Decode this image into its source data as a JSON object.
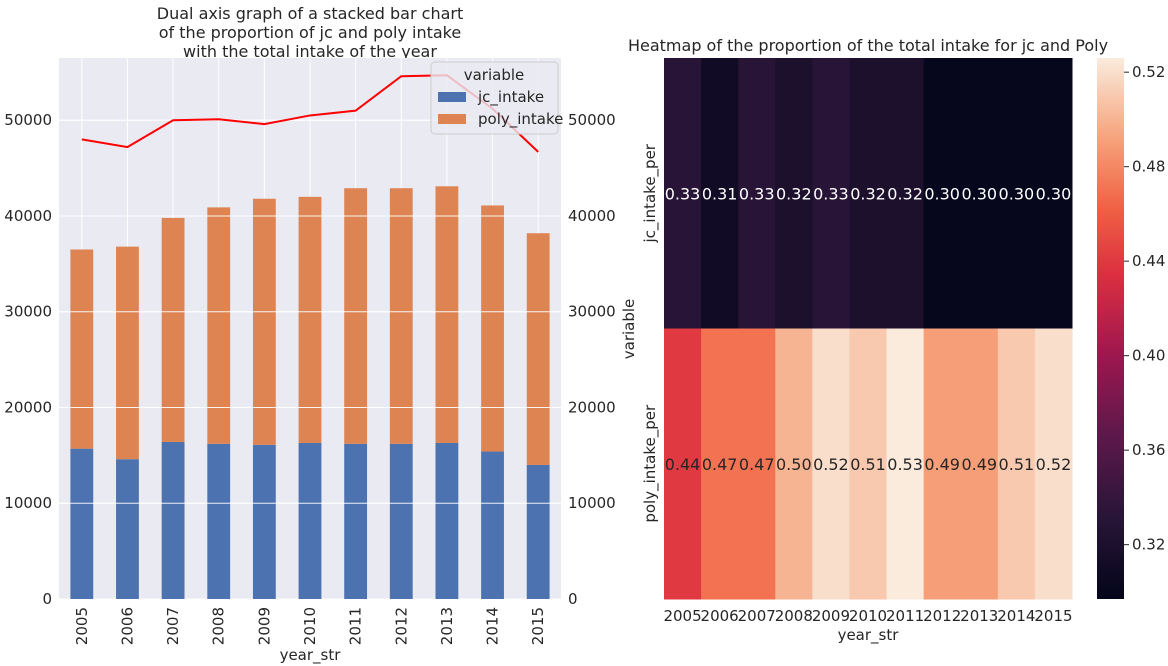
{
  "chart_data": [
    {
      "type": "bar",
      "stacked": true,
      "dual_axis": true,
      "title": "Dual axis graph of a stacked bar chart\nof the proportion of jc and poly intake\nwith the total intake of the year",
      "xlabel": "year_str",
      "ylabel": "",
      "ylim": [
        0,
        56500
      ],
      "y_ticks": [
        "0",
        "10000",
        "20000",
        "30000",
        "40000",
        "50000"
      ],
      "categories": [
        "2005",
        "2006",
        "2007",
        "2008",
        "2009",
        "2010",
        "2011",
        "2012",
        "2013",
        "2014",
        "2015"
      ],
      "legend": {
        "title": "variable",
        "placement": "upper right"
      },
      "grid": true,
      "series": [
        {
          "name": "jc_intake",
          "color": "#4c72b0",
          "values": [
            15700,
            14600,
            16400,
            16200,
            16100,
            16300,
            16200,
            16200,
            16300,
            15400,
            14000
          ]
        },
        {
          "name": "poly_intake",
          "color": "#dd8452",
          "values": [
            20800,
            22200,
            23400,
            24700,
            25700,
            25700,
            26700,
            26700,
            26800,
            25700,
            24200
          ]
        }
      ],
      "secondary_axis": {
        "type": "line",
        "color": "#ff0000",
        "ylim": [
          0,
          56500
        ],
        "y_ticks": [
          "0",
          "10000",
          "20000",
          "30000",
          "40000",
          "50000"
        ],
        "values": [
          48000,
          47200,
          50000,
          50100,
          49600,
          50500,
          51000,
          54600,
          54700,
          51200,
          46700
        ]
      }
    },
    {
      "type": "heatmap",
      "title": "Heatmap of the proportion of the total intake for jc and Poly",
      "xlabel": "year_str",
      "ylabel": "variable",
      "x_categories": [
        "2005",
        "2006",
        "2007",
        "2008",
        "2009",
        "2010",
        "2011",
        "2012",
        "2013",
        "2014",
        "2015"
      ],
      "y_categories": [
        "jc_intake_per",
        "poly_intake_per"
      ],
      "values": [
        [
          0.33,
          0.31,
          0.33,
          0.32,
          0.33,
          0.32,
          0.32,
          0.3,
          0.3,
          0.3,
          0.3
        ],
        [
          0.44,
          0.47,
          0.47,
          0.5,
          0.52,
          0.51,
          0.53,
          0.49,
          0.49,
          0.51,
          0.52
        ]
      ],
      "cell_labels": [
        [
          "0.33",
          "0.31",
          "0.33",
          "0.32",
          "0.33",
          "0.32",
          "0.32",
          "0.30",
          "0.30",
          "0.30",
          "0.30"
        ],
        [
          "0.44",
          "0.47",
          "0.47",
          "0.50",
          "0.52",
          "0.51",
          "0.53",
          "0.49",
          "0.49",
          "0.51",
          "0.52"
        ]
      ],
      "colormap": "rocket",
      "vmin": 0.297,
      "vmax": 0.526,
      "colorbar_ticks": [
        "0.32",
        "0.36",
        "0.40",
        "0.44",
        "0.48",
        "0.52"
      ]
    }
  ]
}
